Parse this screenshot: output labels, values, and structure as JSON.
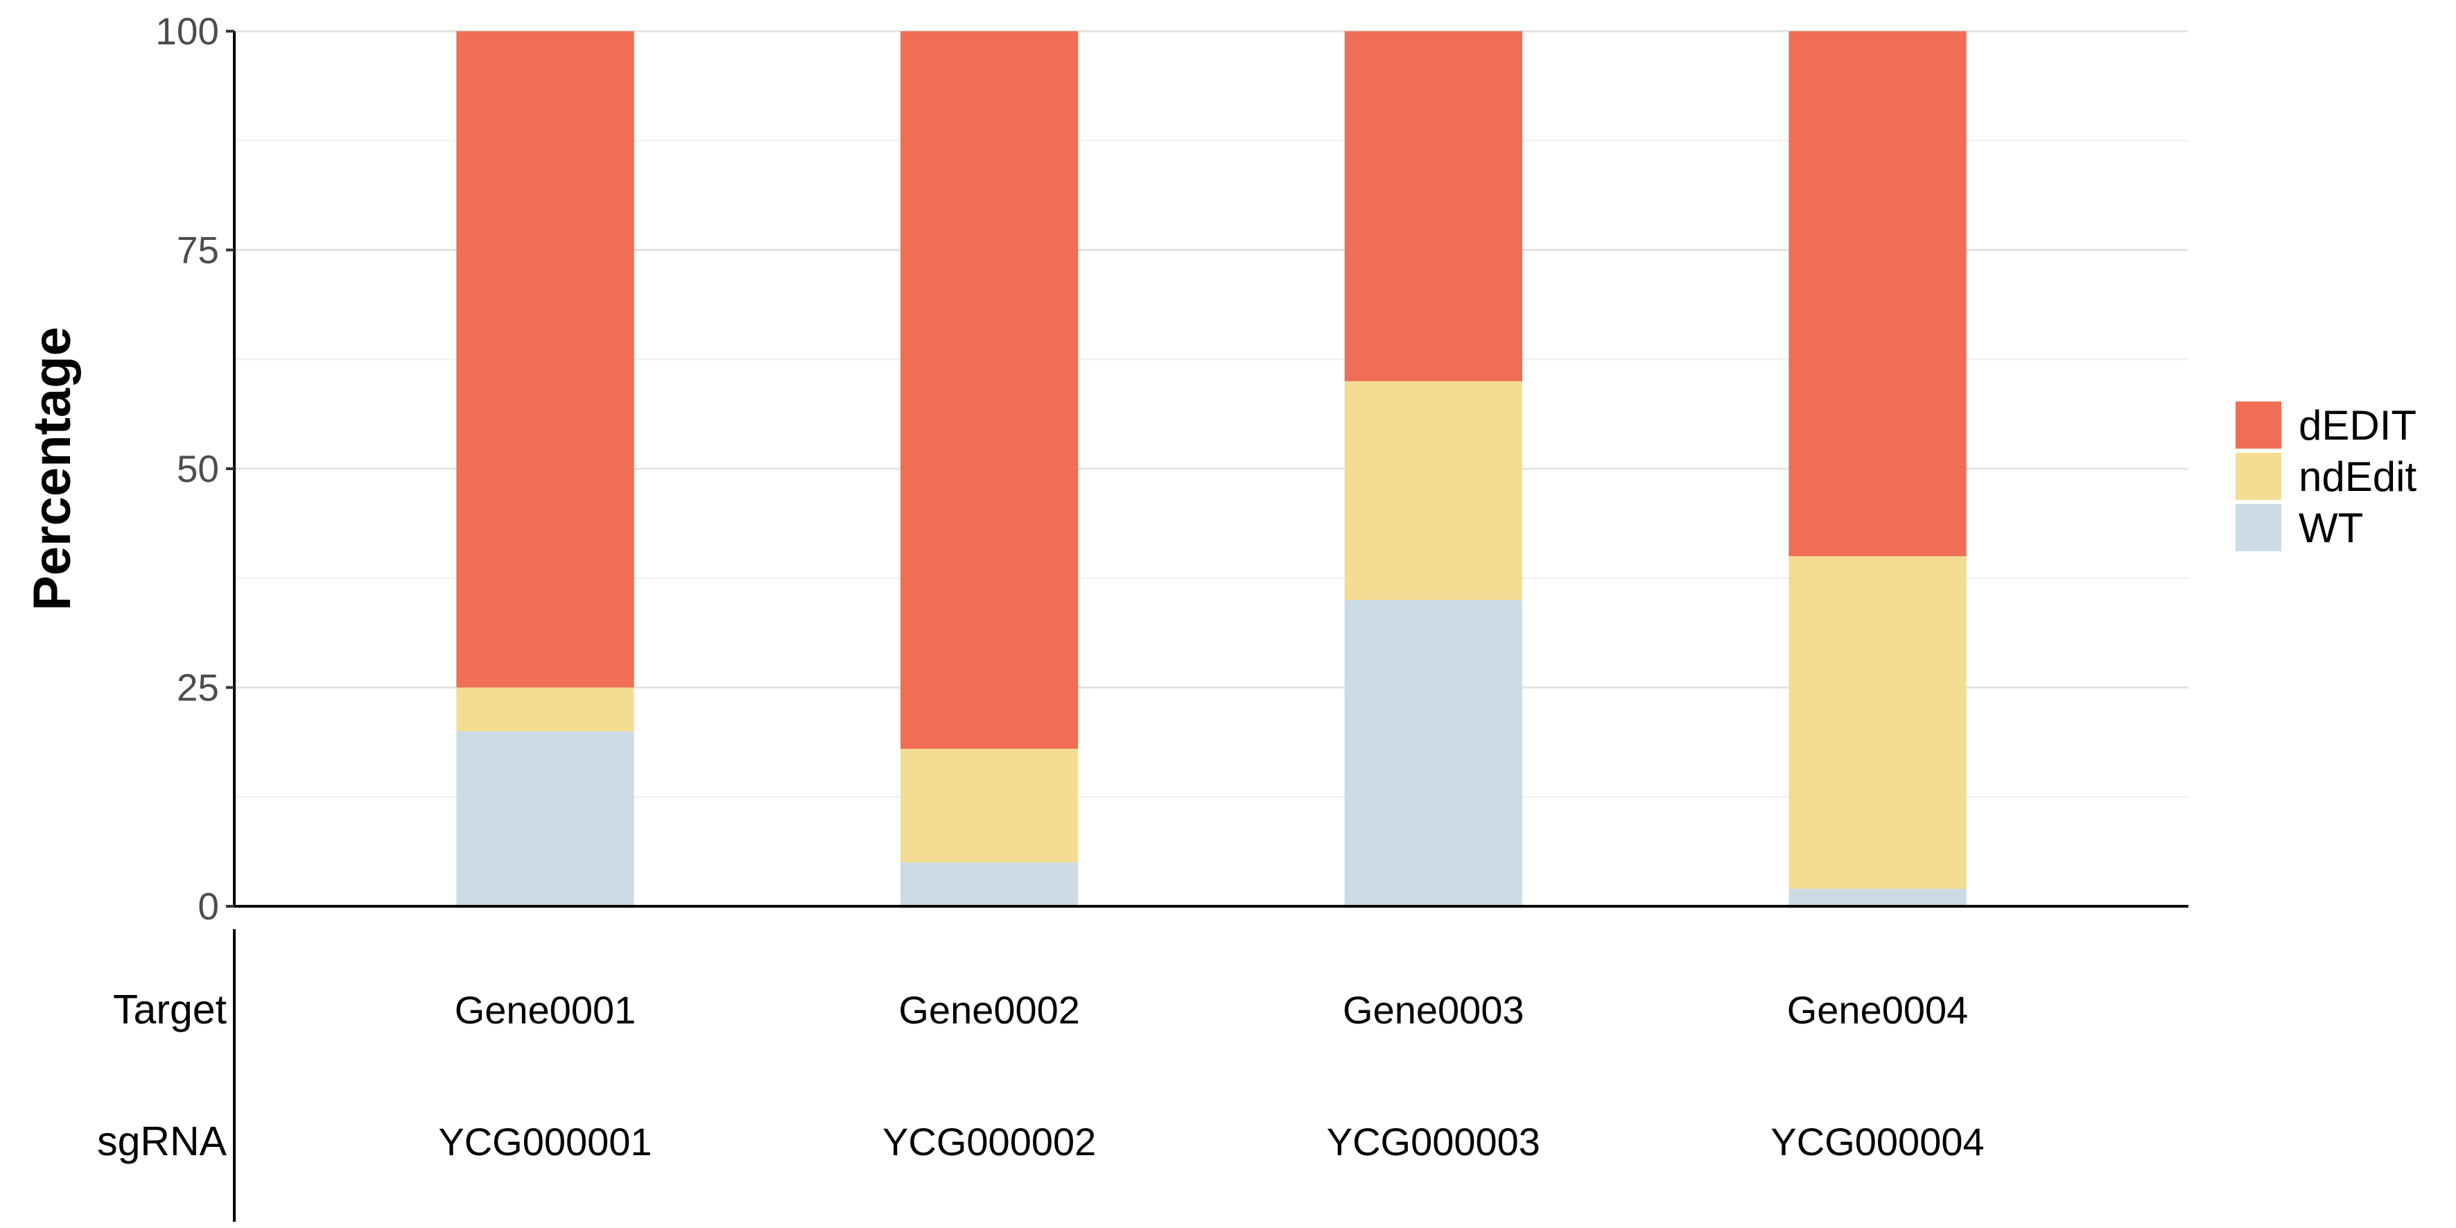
{
  "chart_data": {
    "type": "bar",
    "stacked": true,
    "ylabel": "Percentage",
    "xlabel": "",
    "ylim": [
      0,
      100
    ],
    "yticks": [
      0,
      25,
      50,
      75,
      100
    ],
    "grid": true,
    "legend_position": "right",
    "categories": [
      "Gene0001",
      "Gene0002",
      "Gene0003",
      "Gene0004"
    ],
    "series": [
      {
        "name": "WT",
        "color": "#CCDCE6",
        "values": [
          20,
          5,
          35,
          2
        ]
      },
      {
        "name": "ndEdit",
        "color": "#F4DD93",
        "values": [
          5,
          13,
          25,
          38
        ]
      },
      {
        "name": "dEDIT",
        "color": "#F06E55",
        "values": [
          75,
          82,
          40,
          60
        ]
      }
    ],
    "legend_order": [
      "dEDIT",
      "ndEdit",
      "WT"
    ],
    "annotation_table": {
      "rows": [
        {
          "header": "Target",
          "values": [
            "Gene0001",
            "Gene0002",
            "Gene0003",
            "Gene0004"
          ]
        },
        {
          "header": "sgRNA",
          "values": [
            "YCG000001",
            "YCG000002",
            "YCG000003",
            "YCG000004"
          ]
        }
      ]
    }
  }
}
